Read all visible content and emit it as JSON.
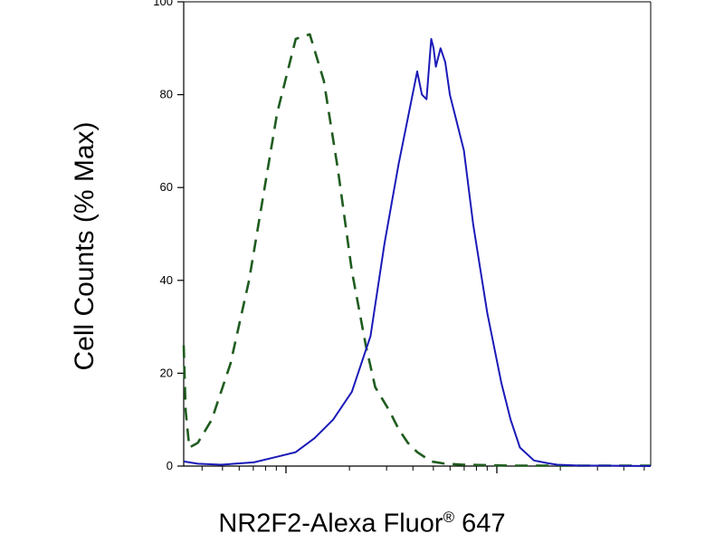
{
  "chart_data": {
    "type": "line",
    "title": "",
    "xlabel": "NR2F2-Alexa Fluor",
    "xlabel_superscript": "®",
    "xlabel_suffix": " 647",
    "ylabel": "Cell Counts (% Max)",
    "xscale": "log",
    "xlim": [
      0,
      1
    ],
    "ylim": [
      0,
      100
    ],
    "yticks": [
      "0",
      "20",
      "40",
      "60",
      "80",
      "100"
    ],
    "legend": "none",
    "grid": false,
    "series": [
      {
        "style": "dashed",
        "color": "#1f5c1f",
        "x": [
          0.0,
          0.004,
          0.012,
          0.03,
          0.06,
          0.1,
          0.14,
          0.17,
          0.2,
          0.24,
          0.27,
          0.3,
          0.33,
          0.36,
          0.39,
          0.41,
          0.44,
          0.46,
          0.48,
          0.5,
          0.53,
          0.56,
          0.6,
          0.65,
          0.7,
          0.8,
          0.9,
          1.0
        ],
        "y": [
          26,
          12,
          4,
          5,
          10,
          22,
          40,
          58,
          76,
          92,
          93,
          83,
          64,
          42,
          26,
          17,
          12,
          8,
          5,
          3,
          1,
          0.5,
          0.3,
          0.2,
          0.1,
          0.1,
          0.1,
          0.1
        ]
      },
      {
        "style": "solid",
        "color": "#1a1ab8",
        "x": [
          0.0,
          0.03,
          0.08,
          0.15,
          0.2,
          0.24,
          0.28,
          0.32,
          0.36,
          0.4,
          0.43,
          0.46,
          0.48,
          0.5,
          0.51,
          0.52,
          0.53,
          0.535,
          0.54,
          0.55,
          0.56,
          0.57,
          0.6,
          0.62,
          0.65,
          0.68,
          0.7,
          0.72,
          0.75,
          0.78,
          0.8,
          0.85,
          0.9,
          1.0
        ],
        "y": [
          1,
          0.5,
          0.3,
          0.8,
          2,
          3,
          6,
          10,
          16,
          28,
          48,
          65,
          75,
          85,
          80,
          79,
          92,
          90,
          86,
          90,
          87,
          80,
          68,
          52,
          33,
          18,
          10,
          4,
          1.2,
          0.6,
          0.3,
          0.1,
          0.1,
          0
        ]
      }
    ]
  }
}
